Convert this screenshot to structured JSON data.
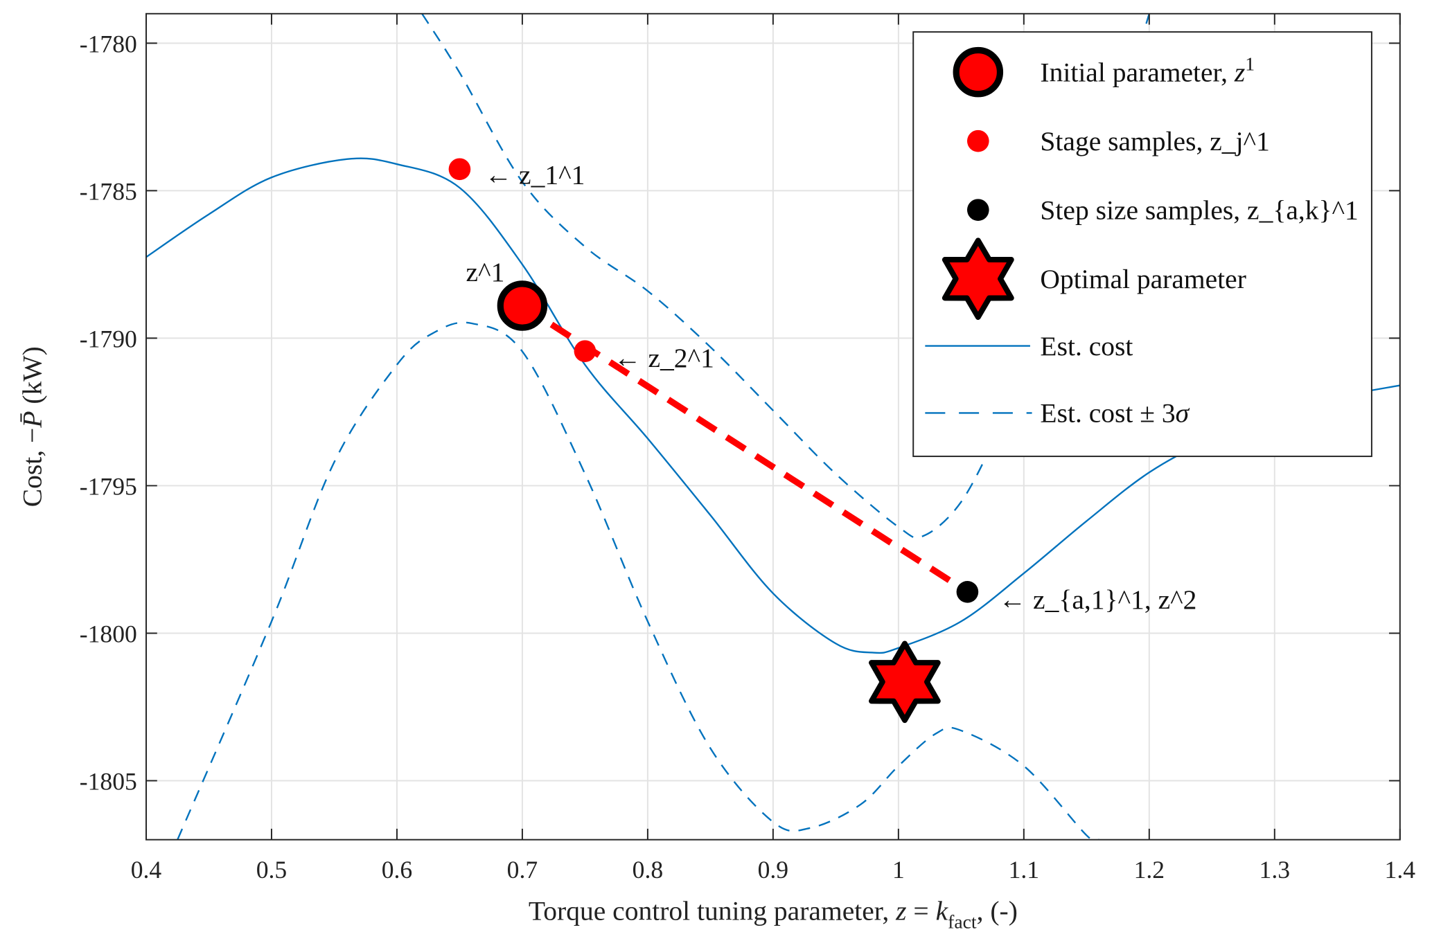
{
  "chart_data": {
    "type": "line",
    "xlabel": "Torque control tuning parameter, z = k_fact, (-)",
    "xlabel_parts": [
      {
        "t": "Torque control tuning parameter, "
      },
      {
        "t": "z",
        "i": true
      },
      {
        "t": " = "
      },
      {
        "t": "k",
        "i": true
      },
      {
        "t": "fact",
        "sub": true
      },
      {
        "t": ", (-)"
      }
    ],
    "ylabel": "Cost, −P̄ (kW)",
    "ylabel_parts": [
      {
        "t": "Cost, −"
      },
      {
        "t": "P̄",
        "i": true
      },
      {
        "t": " (kW)"
      }
    ],
    "xlim": [
      0.4,
      1.4
    ],
    "ylim": [
      -1807,
      -1779
    ],
    "xticks": [
      0.4,
      0.5,
      0.6,
      0.7,
      0.8,
      0.9,
      1,
      1.1,
      1.2,
      1.3,
      1.4
    ],
    "xtick_labels": [
      "0.4",
      "0.5",
      "0.6",
      "0.7",
      "0.8",
      "0.9",
      "1",
      "1.1",
      "1.2",
      "1.3",
      "1.4"
    ],
    "yticks": [
      -1780,
      -1785,
      -1790,
      -1795,
      -1800,
      -1805
    ],
    "ytick_labels": [
      "-1780",
      "-1785",
      "-1790",
      "-1795",
      "-1800",
      "-1805"
    ],
    "grid": true,
    "legend_position": "top-right",
    "colors": {
      "line": "#0072BD",
      "marker_red": "#FF0000",
      "marker_black": "#000000",
      "path": "#FF0000"
    },
    "series": [
      {
        "name": "Est. cost",
        "style": "solid",
        "x": [
          0.4,
          0.45,
          0.5,
          0.56,
          0.6,
          0.65,
          0.7,
          0.75,
          0.8,
          0.85,
          0.9,
          0.95,
          0.98,
          1.0,
          1.05,
          1.1,
          1.15,
          1.2,
          1.25,
          1.3,
          1.35,
          1.4
        ],
        "y": [
          -1787.25,
          -1785.8,
          -1784.55,
          -1783.93,
          -1784.1,
          -1784.9,
          -1787.5,
          -1790.9,
          -1793.4,
          -1796.0,
          -1798.65,
          -1800.35,
          -1800.66,
          -1800.5,
          -1799.6,
          -1797.97,
          -1796.2,
          -1794.55,
          -1793.4,
          -1792.6,
          -1792.0,
          -1791.6
        ]
      },
      {
        "name": "Est. cost ± 3σ",
        "style": "dashed",
        "x": [
          0.62,
          0.65,
          0.7,
          0.75,
          0.8,
          0.85,
          0.9,
          0.95,
          1.0,
          1.02,
          1.05,
          1.08,
          1.1,
          1.15,
          1.2
        ],
        "y": [
          -1779,
          -1781.0,
          -1784.7,
          -1786.9,
          -1788.4,
          -1790.3,
          -1792.45,
          -1794.6,
          -1796.4,
          -1796.7,
          -1795.55,
          -1793.1,
          -1791.0,
          -1786.0,
          -1779
        ]
      },
      {
        "name": "Est. cost ± 3σ",
        "style": "dashed",
        "x": [
          0.425,
          0.5,
          0.55,
          0.6,
          0.63,
          0.66,
          0.7,
          0.75,
          0.8,
          0.85,
          0.9,
          0.93,
          0.97,
          1.0,
          1.03,
          1.05,
          1.1,
          1.15,
          1.16
        ],
        "y": [
          -1807,
          -1799.6,
          -1794.2,
          -1790.9,
          -1789.8,
          -1789.5,
          -1790.45,
          -1794.6,
          -1799.6,
          -1803.9,
          -1806.4,
          -1806.6,
          -1805.8,
          -1804.5,
          -1803.4,
          -1803.3,
          -1804.5,
          -1806.85,
          -1807
        ]
      }
    ],
    "markers": {
      "initial": {
        "x": 0.7,
        "y": -1788.9
      },
      "stage_samples": [
        {
          "x": 0.65,
          "y": -1784.27
        },
        {
          "x": 0.75,
          "y": -1790.44
        }
      ],
      "step_samples": [
        {
          "x": 1.055,
          "y": -1798.6
        }
      ],
      "optimal": {
        "x": 1.005,
        "y": -1801.65
      },
      "search_path": [
        {
          "x": 0.7,
          "y": -1788.9
        },
        {
          "x": 1.055,
          "y": -1798.6
        }
      ]
    },
    "annotations": [
      {
        "text": "← z_1^1",
        "parts": [
          {
            "t": "← "
          },
          {
            "t": "z",
            "i": true
          },
          {
            "t": "1",
            "sub": true,
            "sup": "1"
          }
        ],
        "x": 0.67,
        "y": -1784.4
      },
      {
        "text": "z^1",
        "parts": [
          {
            "t": "z",
            "i": true
          },
          {
            "t": "",
            "sup": "1"
          }
        ],
        "x": 0.655,
        "y": -1787.7
      },
      {
        "text": "← z_2^1",
        "parts": [
          {
            "t": "← "
          },
          {
            "t": "z",
            "i": true
          },
          {
            "t": "2",
            "sub": true,
            "sup": "1"
          }
        ],
        "x": 0.773,
        "y": -1790.6
      },
      {
        "text": "← z_{a,1}^1, z^2",
        "parts": [
          {
            "t": "← "
          },
          {
            "t": "z",
            "i": true
          },
          {
            "t": "a,1",
            "sub": true,
            "sup": "1"
          },
          {
            "t": ", "
          },
          {
            "t": "z",
            "i": true
          },
          {
            "t": "",
            "sup": "2"
          }
        ],
        "x": 1.08,
        "y": -1798.8
      }
    ],
    "legend": [
      {
        "marker": "big-red-circle",
        "label": "Initial parameter, z^1",
        "parts": [
          {
            "t": "Initial parameter, "
          },
          {
            "t": "z",
            "i": true
          },
          {
            "t": "",
            "sup": "1"
          }
        ]
      },
      {
        "marker": "red-dot",
        "label": "Stage samples, z_j^1",
        "parts": [
          {
            "t": "Stage samples, "
          },
          {
            "t": "z",
            "i": true
          },
          {
            "t": "j",
            "sub": true,
            "sup": "1"
          }
        ]
      },
      {
        "marker": "black-dot",
        "label": "Step size samples, z_{a,k}^1",
        "parts": [
          {
            "t": "Step size samples, "
          },
          {
            "t": "z",
            "i": true
          },
          {
            "t": "a,k",
            "sub": true,
            "sup": "1"
          }
        ]
      },
      {
        "marker": "red-star",
        "label": "Optimal parameter",
        "parts": [
          {
            "t": "Optimal parameter"
          }
        ]
      },
      {
        "marker": "solid-line",
        "label": "Est. cost",
        "parts": [
          {
            "t": "Est. cost"
          }
        ]
      },
      {
        "marker": "dashed-line",
        "label": "Est. cost ± 3σ",
        "parts": [
          {
            "t": "Est. cost ± 3"
          },
          {
            "t": "σ",
            "i": true
          }
        ]
      }
    ]
  }
}
